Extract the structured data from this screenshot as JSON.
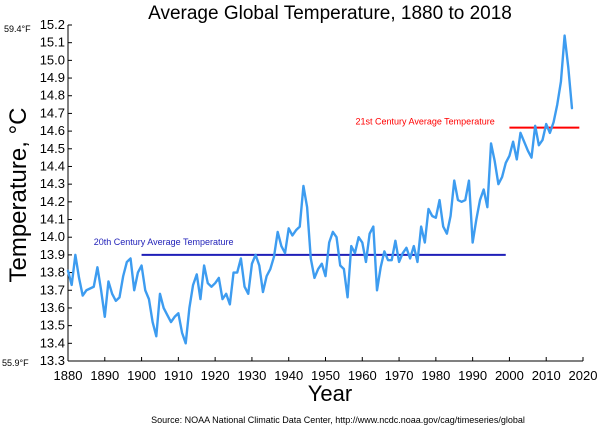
{
  "chart_data": {
    "type": "line",
    "title": "Average Global Temperature, 1880 to 2018",
    "xlabel": "Year",
    "ylabel": "Temperature, °C",
    "xlim": [
      1880,
      2020
    ],
    "ylim": [
      13.3,
      15.2
    ],
    "x_ticks": [
      "1880",
      "1890",
      "1900",
      "1910",
      "1920",
      "1930",
      "1940",
      "1950",
      "1960",
      "1970",
      "1980",
      "1990",
      "2000",
      "2010",
      "2020"
    ],
    "y_ticks": [
      "13.3",
      "13.4",
      "13.5",
      "13.6",
      "13.7",
      "13.8",
      "13.9",
      "14.0",
      "14.1",
      "14.2",
      "14.3",
      "14.4",
      "14.5",
      "14.6",
      "14.7",
      "14.8",
      "14.9",
      "15.0",
      "15.1",
      "15.2"
    ],
    "fahrenheit_labels": {
      "top": "59.4°F",
      "bottom": "55.9°F"
    },
    "series": [
      {
        "name": "Average Global Temperature",
        "color": "#3d9cf0",
        "x_start": 1880,
        "values": [
          13.81,
          13.73,
          13.9,
          13.77,
          13.67,
          13.7,
          13.71,
          13.72,
          13.83,
          13.7,
          13.55,
          13.75,
          13.68,
          13.64,
          13.66,
          13.78,
          13.86,
          13.88,
          13.7,
          13.8,
          13.84,
          13.7,
          13.65,
          13.52,
          13.44,
          13.68,
          13.6,
          13.56,
          13.52,
          13.55,
          13.57,
          13.46,
          13.4,
          13.6,
          13.73,
          13.79,
          13.65,
          13.84,
          13.74,
          13.72,
          13.74,
          13.77,
          13.65,
          13.68,
          13.62,
          13.8,
          13.8,
          13.88,
          13.72,
          13.68,
          13.85,
          13.9,
          13.84,
          13.69,
          13.78,
          13.82,
          13.89,
          14.03,
          13.95,
          13.91,
          14.05,
          14.01,
          14.04,
          14.06,
          14.29,
          14.17,
          13.88,
          13.77,
          13.82,
          13.85,
          13.78,
          13.97,
          14.03,
          14.0,
          13.84,
          13.82,
          13.66,
          13.95,
          13.91,
          14.0,
          13.97,
          13.86,
          14.02,
          14.06,
          13.7,
          13.83,
          13.92,
          13.87,
          13.87,
          13.98,
          13.86,
          13.91,
          13.94,
          13.88,
          13.95,
          13.86,
          14.06,
          13.97,
          14.16,
          14.12,
          14.11,
          14.21,
          14.06,
          14.02,
          14.12,
          14.32,
          14.21,
          14.2,
          14.21,
          14.32,
          13.97,
          14.1,
          14.21,
          14.27,
          14.17,
          14.53,
          14.43,
          14.3,
          14.34,
          14.42,
          14.46,
          14.54,
          14.44,
          14.59,
          14.54,
          14.49,
          14.45,
          14.63,
          14.52,
          14.55,
          14.64,
          14.59,
          14.65,
          14.75,
          14.88,
          15.14,
          14.96,
          14.73
        ],
        "end_label": ""
      }
    ],
    "reference_lines": [
      {
        "label": "20th Century Average Temperature",
        "value": 13.9,
        "from": 1900,
        "to": 1999,
        "color": "#1f1fb8"
      },
      {
        "label": "21st Century Average Temperature",
        "value": 14.62,
        "from": 2000,
        "to": 2019,
        "color": "#ff0000"
      }
    ],
    "source": "Source: NOAA National Climatic Data Center, http://www.ncdc.noaa.gov/cag/timeseries/global"
  }
}
